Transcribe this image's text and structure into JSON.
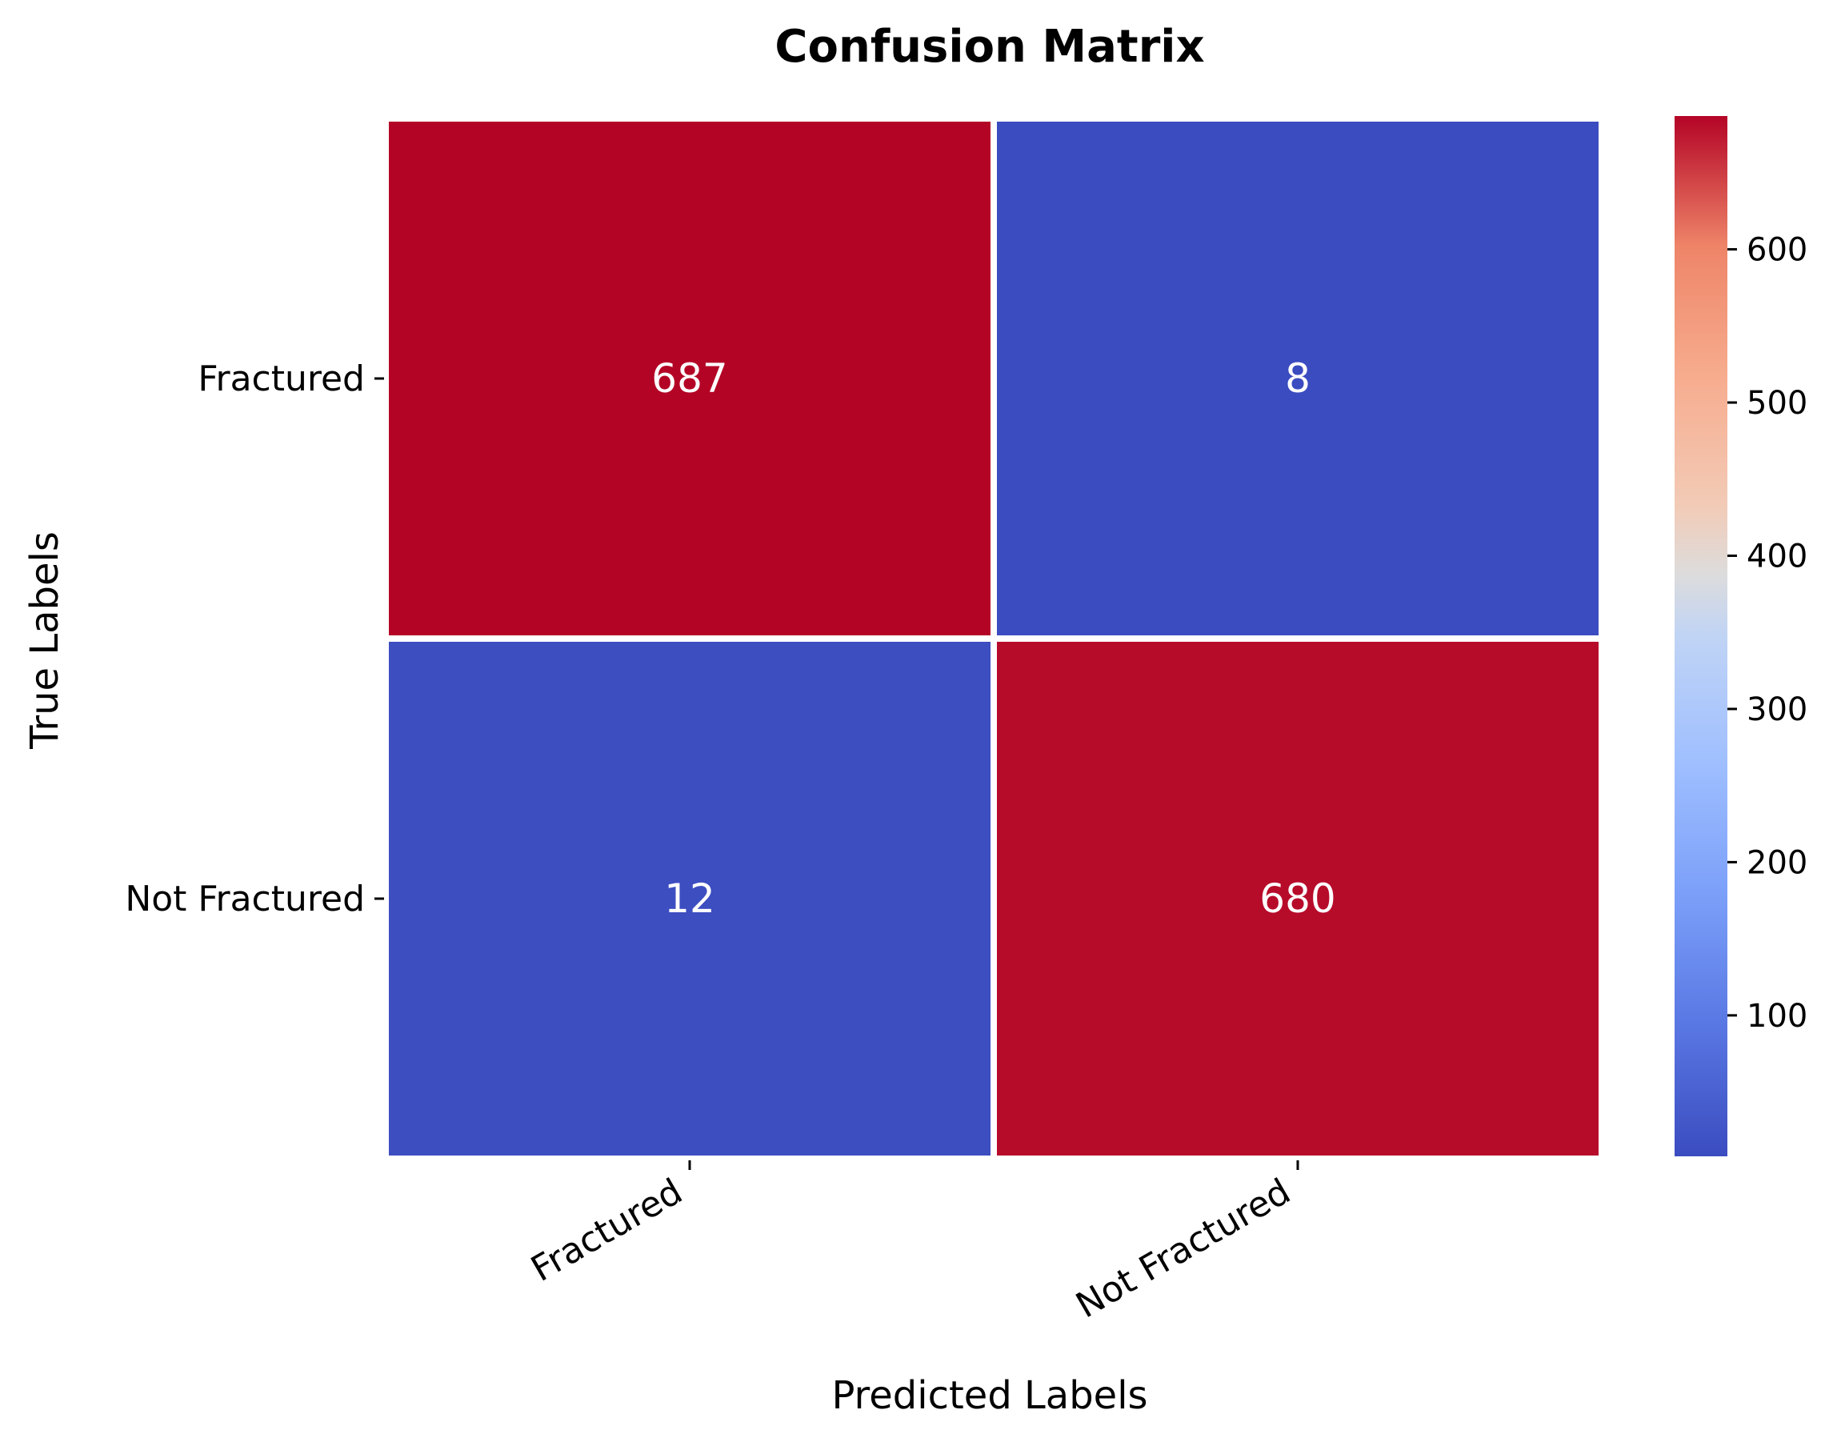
{
  "chart_data": {
    "type": "heatmap",
    "title": "Confusion Matrix",
    "xlabel": "Predicted Labels",
    "ylabel": "True Labels",
    "x_categories": [
      "Fractured",
      "Not Fractured"
    ],
    "y_categories": [
      "Fractured",
      "Not Fractured"
    ],
    "values": [
      [
        687,
        8
      ],
      [
        12,
        680
      ]
    ],
    "colormap": "coolwarm",
    "colorbar": {
      "min": 8,
      "max": 687,
      "ticks": [
        100,
        200,
        300,
        400,
        500,
        600
      ],
      "tick_labels": [
        "100",
        "200",
        "300",
        "400",
        "500",
        "600"
      ]
    },
    "colors": {
      "high": "#b40426",
      "low": "#3b4cc0",
      "text": "#ffffff",
      "cell_border": "#ffffff"
    }
  }
}
